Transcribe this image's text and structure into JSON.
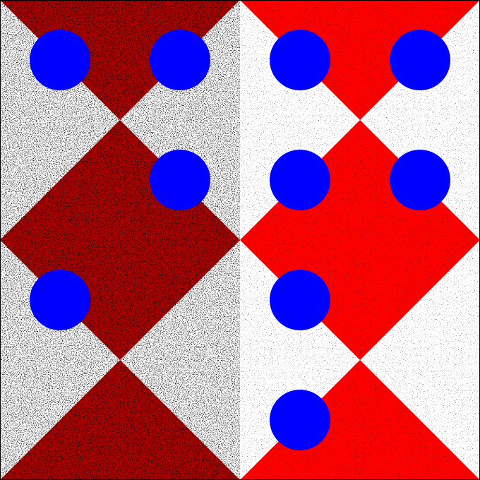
{
  "board": {
    "grid": {
      "columns": 4,
      "rows": 4
    },
    "colors": {
      "light_base": "#ffffff",
      "red": "#ff0000",
      "dark_red_left": "#b00000",
      "token_blue": "#0000ff",
      "noise_dark": "#000000"
    },
    "noise": {
      "left_half_density": 0.42,
      "right_half_density": 0.12
    },
    "tokens": [
      {
        "row": 0,
        "col": 0
      },
      {
        "row": 0,
        "col": 1
      },
      {
        "row": 0,
        "col": 2
      },
      {
        "row": 0,
        "col": 3
      },
      {
        "row": 1,
        "col": 1
      },
      {
        "row": 1,
        "col": 2
      },
      {
        "row": 1,
        "col": 3
      },
      {
        "row": 2,
        "col": 0
      },
      {
        "row": 2,
        "col": 2
      },
      {
        "row": 3,
        "col": 2
      }
    ]
  }
}
